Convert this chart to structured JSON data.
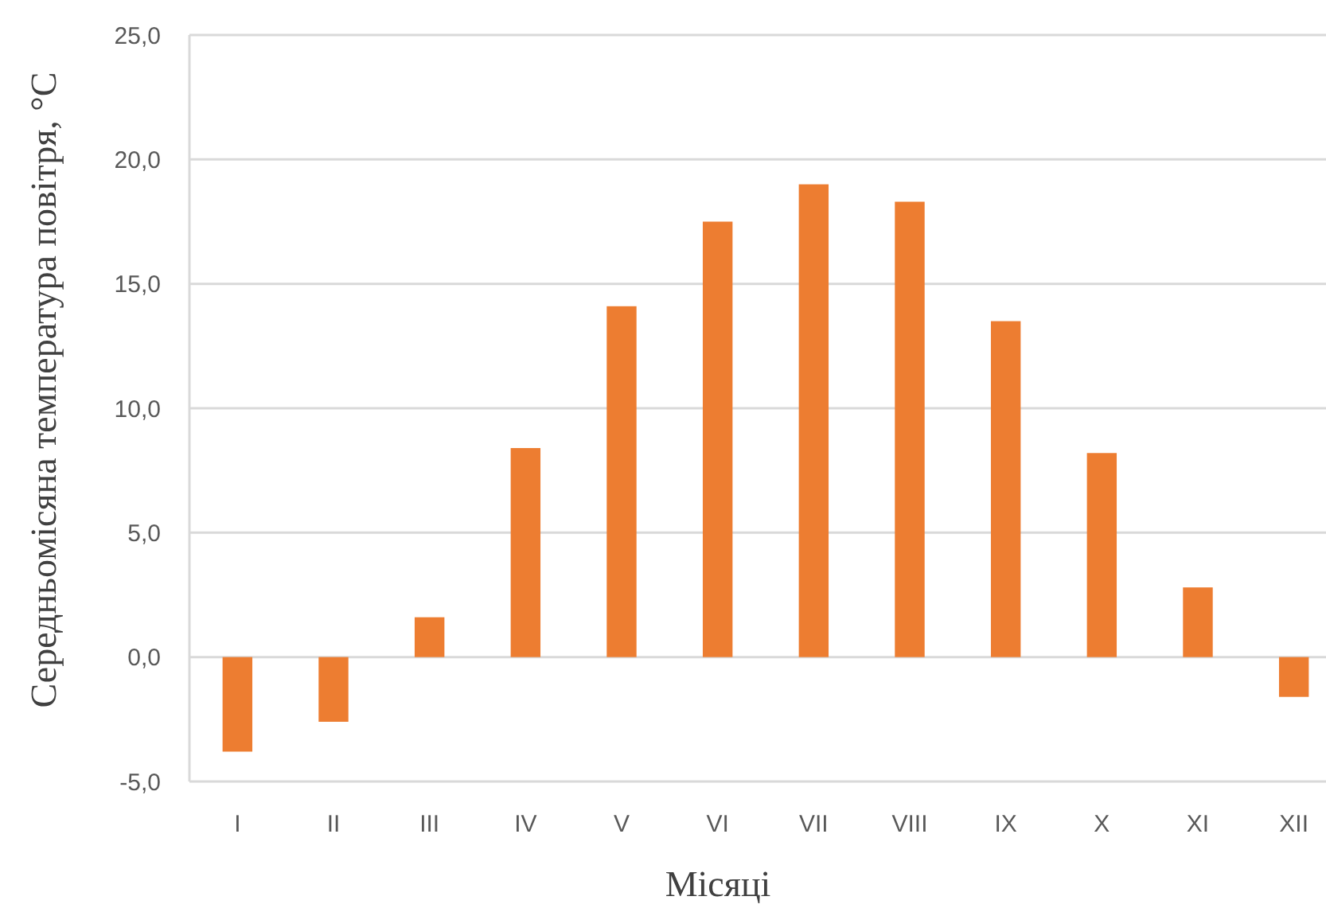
{
  "chart_data": {
    "type": "bar",
    "xlabel": "Місяці",
    "ylabel": "Середньомісяна температура повітря, °С",
    "categories": [
      "I",
      "II",
      "III",
      "IV",
      "V",
      "VI",
      "VII",
      "VIII",
      "IX",
      "X",
      "XI",
      "XII"
    ],
    "values": [
      -3.8,
      -2.6,
      1.6,
      8.4,
      14.1,
      17.5,
      19.0,
      18.3,
      13.5,
      8.2,
      2.8,
      -1.6
    ],
    "color": "#ed7d31",
    "ylim": [
      -5,
      25
    ],
    "yticks": [
      {
        "value": -5,
        "label": "-5,0"
      },
      {
        "value": 0,
        "label": "0,0"
      },
      {
        "value": 5,
        "label": "5,0"
      },
      {
        "value": 10,
        "label": "10,0"
      },
      {
        "value": 15,
        "label": "15,0"
      },
      {
        "value": 20,
        "label": "20,0"
      },
      {
        "value": 25,
        "label": "25,0"
      }
    ],
    "grid": "y"
  }
}
